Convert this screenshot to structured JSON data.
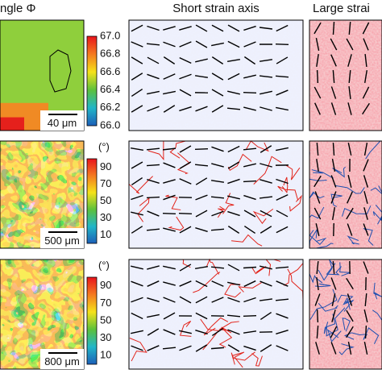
{
  "headers": [
    "ngle Φ",
    "Short strain axis",
    "Large strai"
  ],
  "rows": [
    {
      "unit": null,
      "colorbar": [
        "67.0",
        "66.8",
        "66.6",
        "66.4",
        "66.2",
        "66.0"
      ],
      "scale_bar": "40 μm"
    },
    {
      "unit": "(°)",
      "colorbar": [
        "90",
        "70",
        "50",
        "30",
        "10"
      ],
      "scale_bar": "500 μm"
    },
    {
      "unit": "(°)",
      "colorbar": [
        "90",
        "70",
        "50",
        "30",
        "10"
      ],
      "scale_bar": "800 μm"
    }
  ]
}
